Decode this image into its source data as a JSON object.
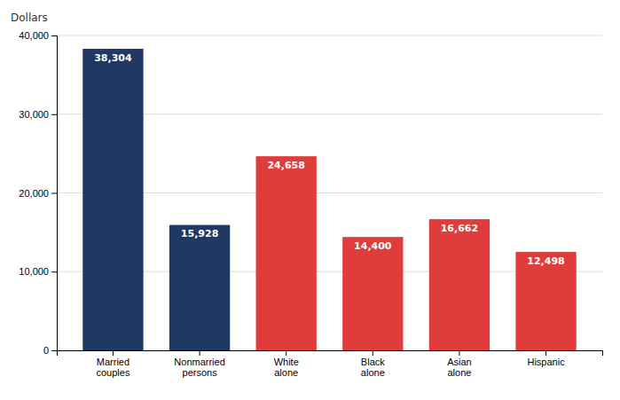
{
  "chart_data": {
    "type": "bar",
    "ylabel": "Dollars",
    "categories": [
      "Married\ncouples",
      "Nonmarried\npersons",
      "White\nalone",
      "Black\nalone",
      "Asian\nalone",
      "Hispanic"
    ],
    "values": [
      38304,
      15928,
      24658,
      14400,
      16662,
      12498
    ],
    "value_labels": [
      "38,304",
      "15,928",
      "24,658",
      "14,400",
      "16,662",
      "12,498"
    ],
    "colors": [
      "#1f3864",
      "#1f3864",
      "#e03c3c",
      "#e03c3c",
      "#e03c3c",
      "#e03c3c"
    ],
    "ylim": [
      0,
      40000
    ],
    "yticks": [
      0,
      {
        "value": 10000,
        "label": "10,000"
      },
      {
        "value": 20000,
        "label": "20,000"
      },
      {
        "value": 30000,
        "label": "30,000"
      },
      {
        "value": 40000,
        "label": "40,000"
      }
    ],
    "grid": true,
    "data_labels": true
  }
}
